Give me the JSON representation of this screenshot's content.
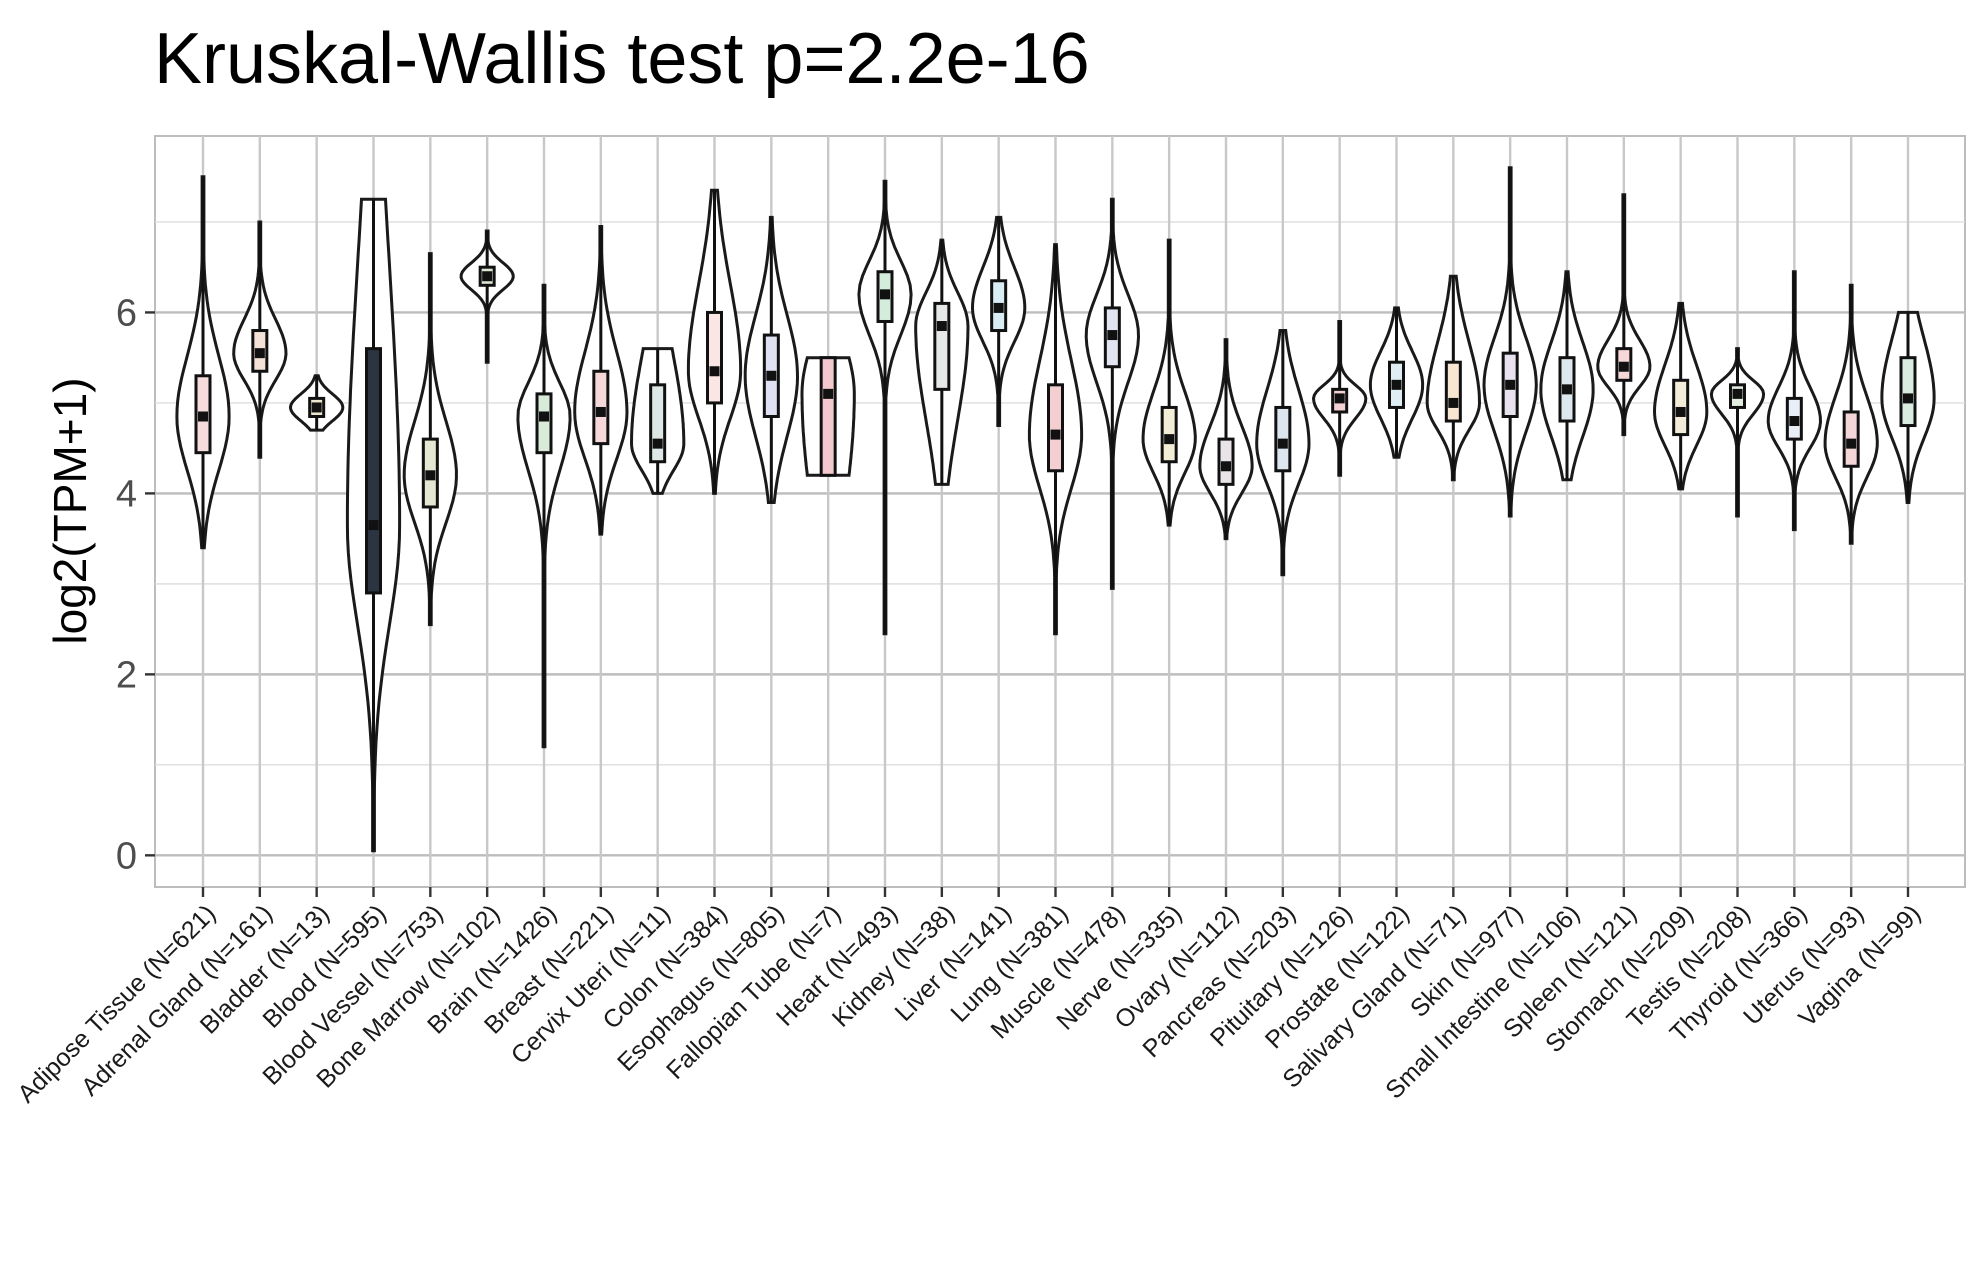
{
  "chart_data": {
    "type": "violin",
    "title": "Kruskal-Wallis test p=2.2e-16",
    "xlabel": "",
    "ylabel": "log2(TPM+1)",
    "ylim": [
      -0.35,
      7.95
    ],
    "yticks": [
      0,
      2,
      4,
      6
    ],
    "grid": true,
    "legend": "none",
    "categories": [
      "Adipose Tissue (N=621)",
      "Adrenal Gland (N=161)",
      "Bladder (N=13)",
      "Blood (N=595)",
      "Blood Vessel (N=753)",
      "Bone Marrow (N=102)",
      "Brain (N=1426)",
      "Breast (N=221)",
      "Cervix Uteri (N=11)",
      "Colon (N=384)",
      "Esophagus (N=805)",
      "Fallopian Tube (N=7)",
      "Heart (N=493)",
      "Kidney (N=38)",
      "Liver (N=141)",
      "Lung (N=381)",
      "Muscle (N=478)",
      "Nerve (N=335)",
      "Ovary (N=112)",
      "Pancreas (N=203)",
      "Pituitary (N=126)",
      "Prostate (N=122)",
      "Salivary Gland (N=71)",
      "Skin (N=977)",
      "Small Intestine (N=106)",
      "Spleen (N=121)",
      "Stomach (N=209)",
      "Testis (N=208)",
      "Thyroid (N=366)",
      "Uterus (N=93)",
      "Vagina (N=99)"
    ],
    "series": [
      {
        "min": 3.4,
        "q1": 4.45,
        "median": 4.85,
        "q3": 5.3,
        "max": 7.5,
        "fill": "#f6dcdc"
      },
      {
        "min": 4.4,
        "q1": 5.35,
        "median": 5.55,
        "q3": 5.8,
        "max": 7.0,
        "fill": "#f5e2d6"
      },
      {
        "min": 4.7,
        "q1": 4.85,
        "median": 4.95,
        "q3": 5.05,
        "max": 5.3,
        "fill": "#ece8cf"
      },
      {
        "min": 0.05,
        "q1": 2.9,
        "median": 3.65,
        "q3": 5.6,
        "max": 7.25,
        "fill": "#2b3440"
      },
      {
        "min": 2.55,
        "q1": 3.85,
        "median": 4.2,
        "q3": 4.6,
        "max": 6.65,
        "fill": "#e4e8d2"
      },
      {
        "min": 5.45,
        "q1": 6.3,
        "median": 6.4,
        "q3": 6.5,
        "max": 6.9,
        "fill": "#dce8d6"
      },
      {
        "min": 1.2,
        "q1": 4.45,
        "median": 4.85,
        "q3": 5.1,
        "max": 6.3,
        "fill": "#d8ead8"
      },
      {
        "min": 3.55,
        "q1": 4.55,
        "median": 4.9,
        "q3": 5.35,
        "max": 6.95,
        "fill": "#f6d8d8"
      },
      {
        "min": 4.0,
        "q1": 4.35,
        "median": 4.55,
        "q3": 5.2,
        "max": 5.6,
        "fill": "#dde8e6"
      },
      {
        "min": 4.0,
        "q1": 5.0,
        "median": 5.35,
        "q3": 6.0,
        "max": 7.35,
        "fill": "#fbe6e6"
      },
      {
        "min": 3.9,
        "q1": 4.85,
        "median": 5.3,
        "q3": 5.75,
        "max": 7.05,
        "fill": "#dfe1f2"
      },
      {
        "min": 4.2,
        "q1": 4.2,
        "median": 5.1,
        "q3": 5.5,
        "max": 5.5,
        "fill": "#f3c9cd"
      },
      {
        "min": 2.45,
        "q1": 5.9,
        "median": 6.2,
        "q3": 6.45,
        "max": 7.45,
        "fill": "#d4ecdb"
      },
      {
        "min": 4.1,
        "q1": 5.15,
        "median": 5.85,
        "q3": 6.1,
        "max": 6.8,
        "fill": "#e6e8e8"
      },
      {
        "min": 4.75,
        "q1": 5.8,
        "median": 6.05,
        "q3": 6.35,
        "max": 7.05,
        "fill": "#d8eef4"
      },
      {
        "min": 2.45,
        "q1": 4.25,
        "median": 4.65,
        "q3": 5.2,
        "max": 6.75,
        "fill": "#f4cfd2"
      },
      {
        "min": 2.95,
        "q1": 5.4,
        "median": 5.75,
        "q3": 6.05,
        "max": 7.25,
        "fill": "#e2e4f2"
      },
      {
        "min": 3.65,
        "q1": 4.35,
        "median": 4.6,
        "q3": 4.95,
        "max": 6.8,
        "fill": "#f2eed6"
      },
      {
        "min": 3.5,
        "q1": 4.1,
        "median": 4.3,
        "q3": 4.6,
        "max": 5.7,
        "fill": "#e8e4e8"
      },
      {
        "min": 3.1,
        "q1": 4.25,
        "median": 4.55,
        "q3": 4.95,
        "max": 5.8,
        "fill": "#dde6ee"
      },
      {
        "min": 4.2,
        "q1": 4.9,
        "median": 5.05,
        "q3": 5.15,
        "max": 5.9,
        "fill": "#f4d2d4"
      },
      {
        "min": 4.4,
        "q1": 4.95,
        "median": 5.2,
        "q3": 5.45,
        "max": 6.05,
        "fill": "#e0eef4"
      },
      {
        "min": 4.15,
        "q1": 4.8,
        "median": 5.0,
        "q3": 5.45,
        "max": 6.4,
        "fill": "#f7e6d2"
      },
      {
        "min": 3.75,
        "q1": 4.85,
        "median": 5.2,
        "q3": 5.55,
        "max": 7.6,
        "fill": "#e8e2ee"
      },
      {
        "min": 4.15,
        "q1": 4.8,
        "median": 5.15,
        "q3": 5.5,
        "max": 6.45,
        "fill": "#dce8ee"
      },
      {
        "min": 4.65,
        "q1": 5.25,
        "median": 5.4,
        "q3": 5.6,
        "max": 7.3,
        "fill": "#f6d8d8"
      },
      {
        "min": 4.05,
        "q1": 4.65,
        "median": 4.9,
        "q3": 5.25,
        "max": 6.1,
        "fill": "#f2ecd8"
      },
      {
        "min": 3.75,
        "q1": 4.95,
        "median": 5.1,
        "q3": 5.2,
        "max": 5.6,
        "fill": "#e4eee0"
      },
      {
        "min": 3.6,
        "q1": 4.6,
        "median": 4.8,
        "q3": 5.05,
        "max": 6.45,
        "fill": "#eaeef6"
      },
      {
        "min": 3.45,
        "q1": 4.3,
        "median": 4.55,
        "q3": 4.9,
        "max": 6.3,
        "fill": "#f4d6d8"
      },
      {
        "min": 3.9,
        "q1": 4.75,
        "median": 5.05,
        "q3": 5.5,
        "max": 6.0,
        "fill": "#d8ecdf"
      }
    ]
  }
}
